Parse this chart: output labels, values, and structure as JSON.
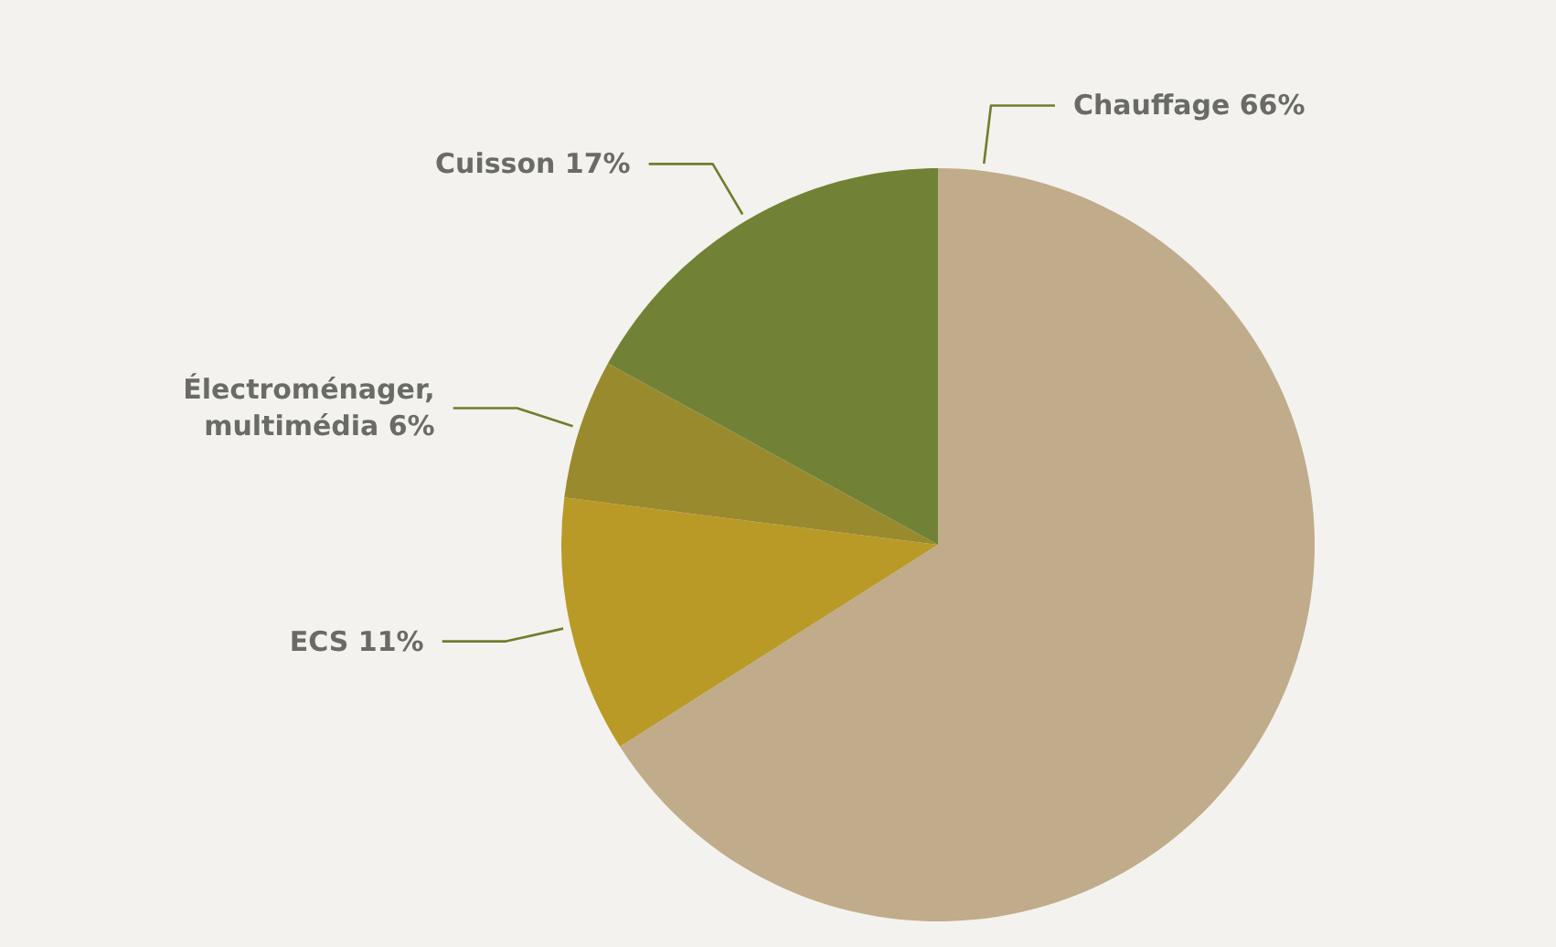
{
  "chart_data": {
    "type": "pie",
    "categories": [
      "Chauffage",
      "ECS",
      "Électroménager, multimédia",
      "Cuisson"
    ],
    "values": [
      66,
      11,
      6,
      17
    ],
    "value_labels": [
      "66%",
      "11%",
      "6%",
      "17%"
    ],
    "colors": [
      "#c0ac8a",
      "#b99a27",
      "#9a8a2e",
      "#718236"
    ]
  }
}
